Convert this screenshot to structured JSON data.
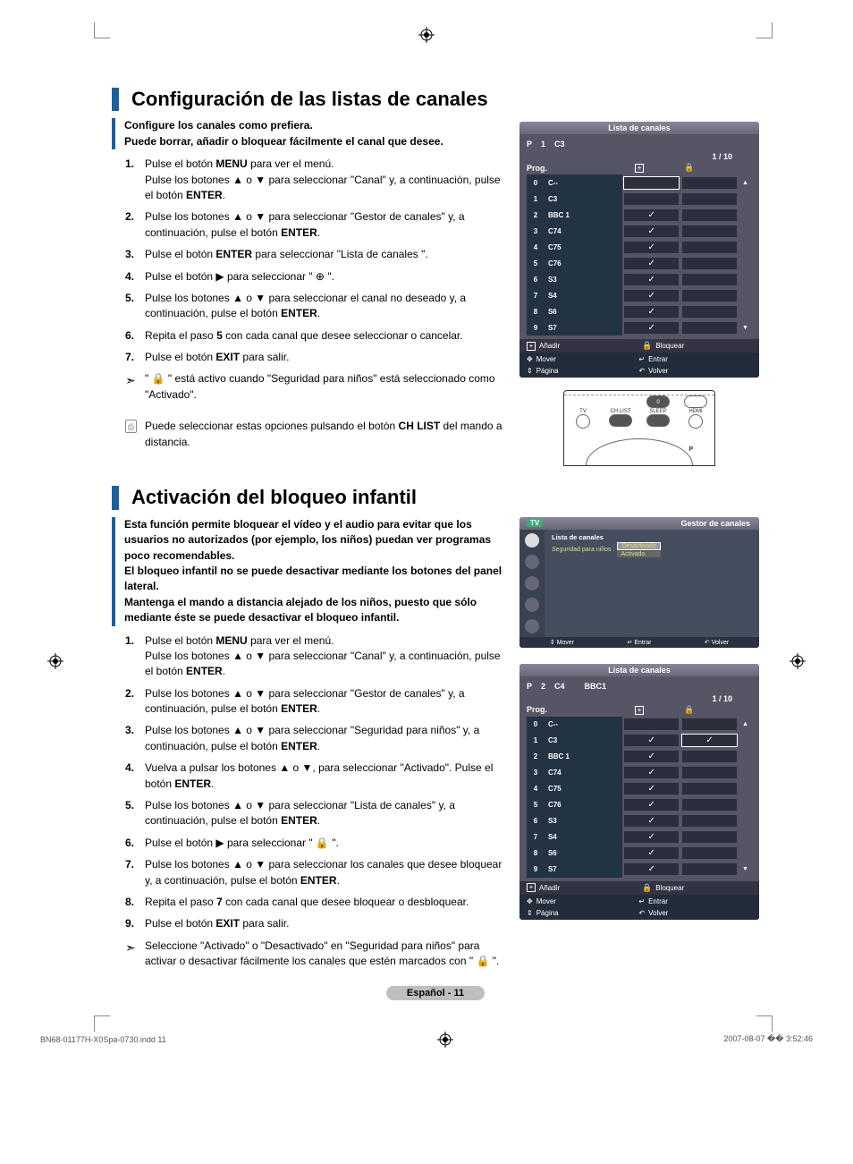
{
  "page": {
    "footer_label": "Español - 11",
    "print_file": "BN68-01177H-X0Spa-0730.indd   11",
    "print_ts": "2007-08-07   �� 3:52:46"
  },
  "section1": {
    "title": "Configuración de las listas de canales",
    "sub1": "Configure los canales como prefiera.",
    "sub2": "Puede borrar, añadir o bloquear fácilmente el canal que desee.",
    "steps": [
      "Pulse el botón <b>MENU</b> para ver el menú.<br>Pulse los botones ▲ o ▼ para seleccionar \"Canal\" y, a continuación, pulse el botón <b>ENTER</b>.",
      "Pulse los botones ▲ o ▼ para seleccionar \"Gestor de canales\" y, a continuación, pulse el botón <b>ENTER</b>.",
      "Pulse el botón <b>ENTER</b> para seleccionar \"Lista de canales \".",
      "Pulse el botón ▶ para seleccionar \" ⊕ \".",
      "Pulse los botones ▲ o ▼ para seleccionar el canal no deseado y, a continuación, pulse el botón <b>ENTER</b>.",
      "Repita el paso <b>5</b> con cada canal que desee seleccionar o cancelar.",
      "Pulse el botón <b>EXIT</b> para salir."
    ],
    "note": "\" 🔒 \" está activo cuando \"Seguridad para niños\" está seleccionado como \"Activado\".",
    "info": "Puede seleccionar estas opciones pulsando el botón <b>CH LIST</b> del mando a distancia."
  },
  "section2": {
    "title": "Activación del bloqueo infantil",
    "sub1": "Esta función permite bloquear el vídeo y el audio para evitar que los usuarios no autorizados (por ejemplo, los niños) puedan ver programas poco recomendables.",
    "sub2": "El bloqueo infantil no se puede desactivar mediante los botones del panel lateral.",
    "sub3": "Mantenga el mando a distancia alejado de los niños, puesto que sólo mediante éste se puede desactivar el bloqueo infantil.",
    "steps": [
      "Pulse el botón <b>MENU</b> para ver el menú.<br>Pulse los botones ▲ o ▼ para seleccionar \"Canal\" y, a continuación, pulse el botón <b>ENTER</b>.",
      "Pulse los botones ▲ o ▼ para seleccionar \"Gestor de canales\" y, a continuación, pulse el botón <b>ENTER</b>.",
      "Pulse los botones ▲ o ▼ para seleccionar \"Seguridad para niños\" y, a continuación, pulse el botón <b>ENTER</b>.",
      "Vuelva a pulsar los botones ▲ o ▼, para seleccionar \"Activado\". Pulse el botón <b>ENTER</b>.",
      "Pulse los botones ▲ o ▼ para seleccionar \"Lista de canales\" y, a continuación, pulse el botón <b>ENTER</b>.",
      "Pulse el botón ▶ para seleccionar \" 🔒 \".",
      "Pulse los botones ▲ o ▼ para seleccionar los canales que desee bloquear y, a continuación, pulse el botón <b>ENTER</b>.",
      "Repita el paso <b>7</b> con cada canal que desee bloquear o desbloquear.",
      "Pulse el botón <b>EXIT</b> para salir."
    ],
    "note": "Seleccione \"Activado\" o \"Desactivado\" en \"Seguridad para niños\" para activar o desactivar fácilmente los canales que estén marcados con \" 🔒 \"."
  },
  "osd1": {
    "title": "Lista de canales",
    "header_p": "P",
    "header_num": "1",
    "header_ch": "C3",
    "page_counter": "1 / 10",
    "col_prog": "Prog.",
    "rows": [
      {
        "n": "0",
        "name": "C--",
        "add": false,
        "lock": false,
        "sel": true
      },
      {
        "n": "1",
        "name": "C3",
        "add": false,
        "lock": false
      },
      {
        "n": "2",
        "name": "BBC 1",
        "add": true,
        "lock": false
      },
      {
        "n": "3",
        "name": "C74",
        "add": true,
        "lock": false
      },
      {
        "n": "4",
        "name": "C75",
        "add": true,
        "lock": false
      },
      {
        "n": "5",
        "name": "C76",
        "add": true,
        "lock": false
      },
      {
        "n": "6",
        "name": "S3",
        "add": true,
        "lock": false
      },
      {
        "n": "7",
        "name": "S4",
        "add": true,
        "lock": false
      },
      {
        "n": "8",
        "name": "S6",
        "add": true,
        "lock": false
      },
      {
        "n": "9",
        "name": "S7",
        "add": true,
        "lock": false
      }
    ],
    "leg_add": "Añadir",
    "leg_lock": "Bloquear",
    "leg_move": "Mover",
    "leg_enter": "Entrar",
    "leg_page": "Página",
    "leg_return": "Volver"
  },
  "osd2": {
    "title": "Gestor de canales",
    "tv": "TV",
    "item1": "Lista de canales",
    "item2": "Seguridad para niños  :",
    "opt_off": "Desactivado",
    "opt_on": "Activado",
    "f_move": "Mover",
    "f_enter": "Entrar",
    "f_return": "Volver"
  },
  "osd3": {
    "title": "Lista de canales",
    "header_p": "P",
    "header_num": "2",
    "header_ch": "C4",
    "header_name": "BBC1",
    "page_counter": "1 / 10",
    "col_prog": "Prog.",
    "rows": [
      {
        "n": "0",
        "name": "C--",
        "add": false,
        "lock": false
      },
      {
        "n": "1",
        "name": "C3",
        "add": true,
        "lock": true,
        "locksel": true
      },
      {
        "n": "2",
        "name": "BBC 1",
        "add": true,
        "lock": false
      },
      {
        "n": "3",
        "name": "C74",
        "add": true,
        "lock": false
      },
      {
        "n": "4",
        "name": "C75",
        "add": true,
        "lock": false
      },
      {
        "n": "5",
        "name": "C76",
        "add": true,
        "lock": false
      },
      {
        "n": "6",
        "name": "S3",
        "add": true,
        "lock": false
      },
      {
        "n": "7",
        "name": "S4",
        "add": true,
        "lock": false
      },
      {
        "n": "8",
        "name": "S6",
        "add": true,
        "lock": false
      },
      {
        "n": "9",
        "name": "S7",
        "add": true,
        "lock": false
      }
    ],
    "leg_add": "Añadir",
    "leg_lock": "Bloquear",
    "leg_move": "Mover",
    "leg_enter": "Entrar",
    "leg_page": "Página",
    "leg_return": "Volver"
  },
  "remote": {
    "lbls": [
      "TV",
      "CH LIST",
      "SLEEP",
      "HDMI"
    ],
    "p": "P"
  }
}
